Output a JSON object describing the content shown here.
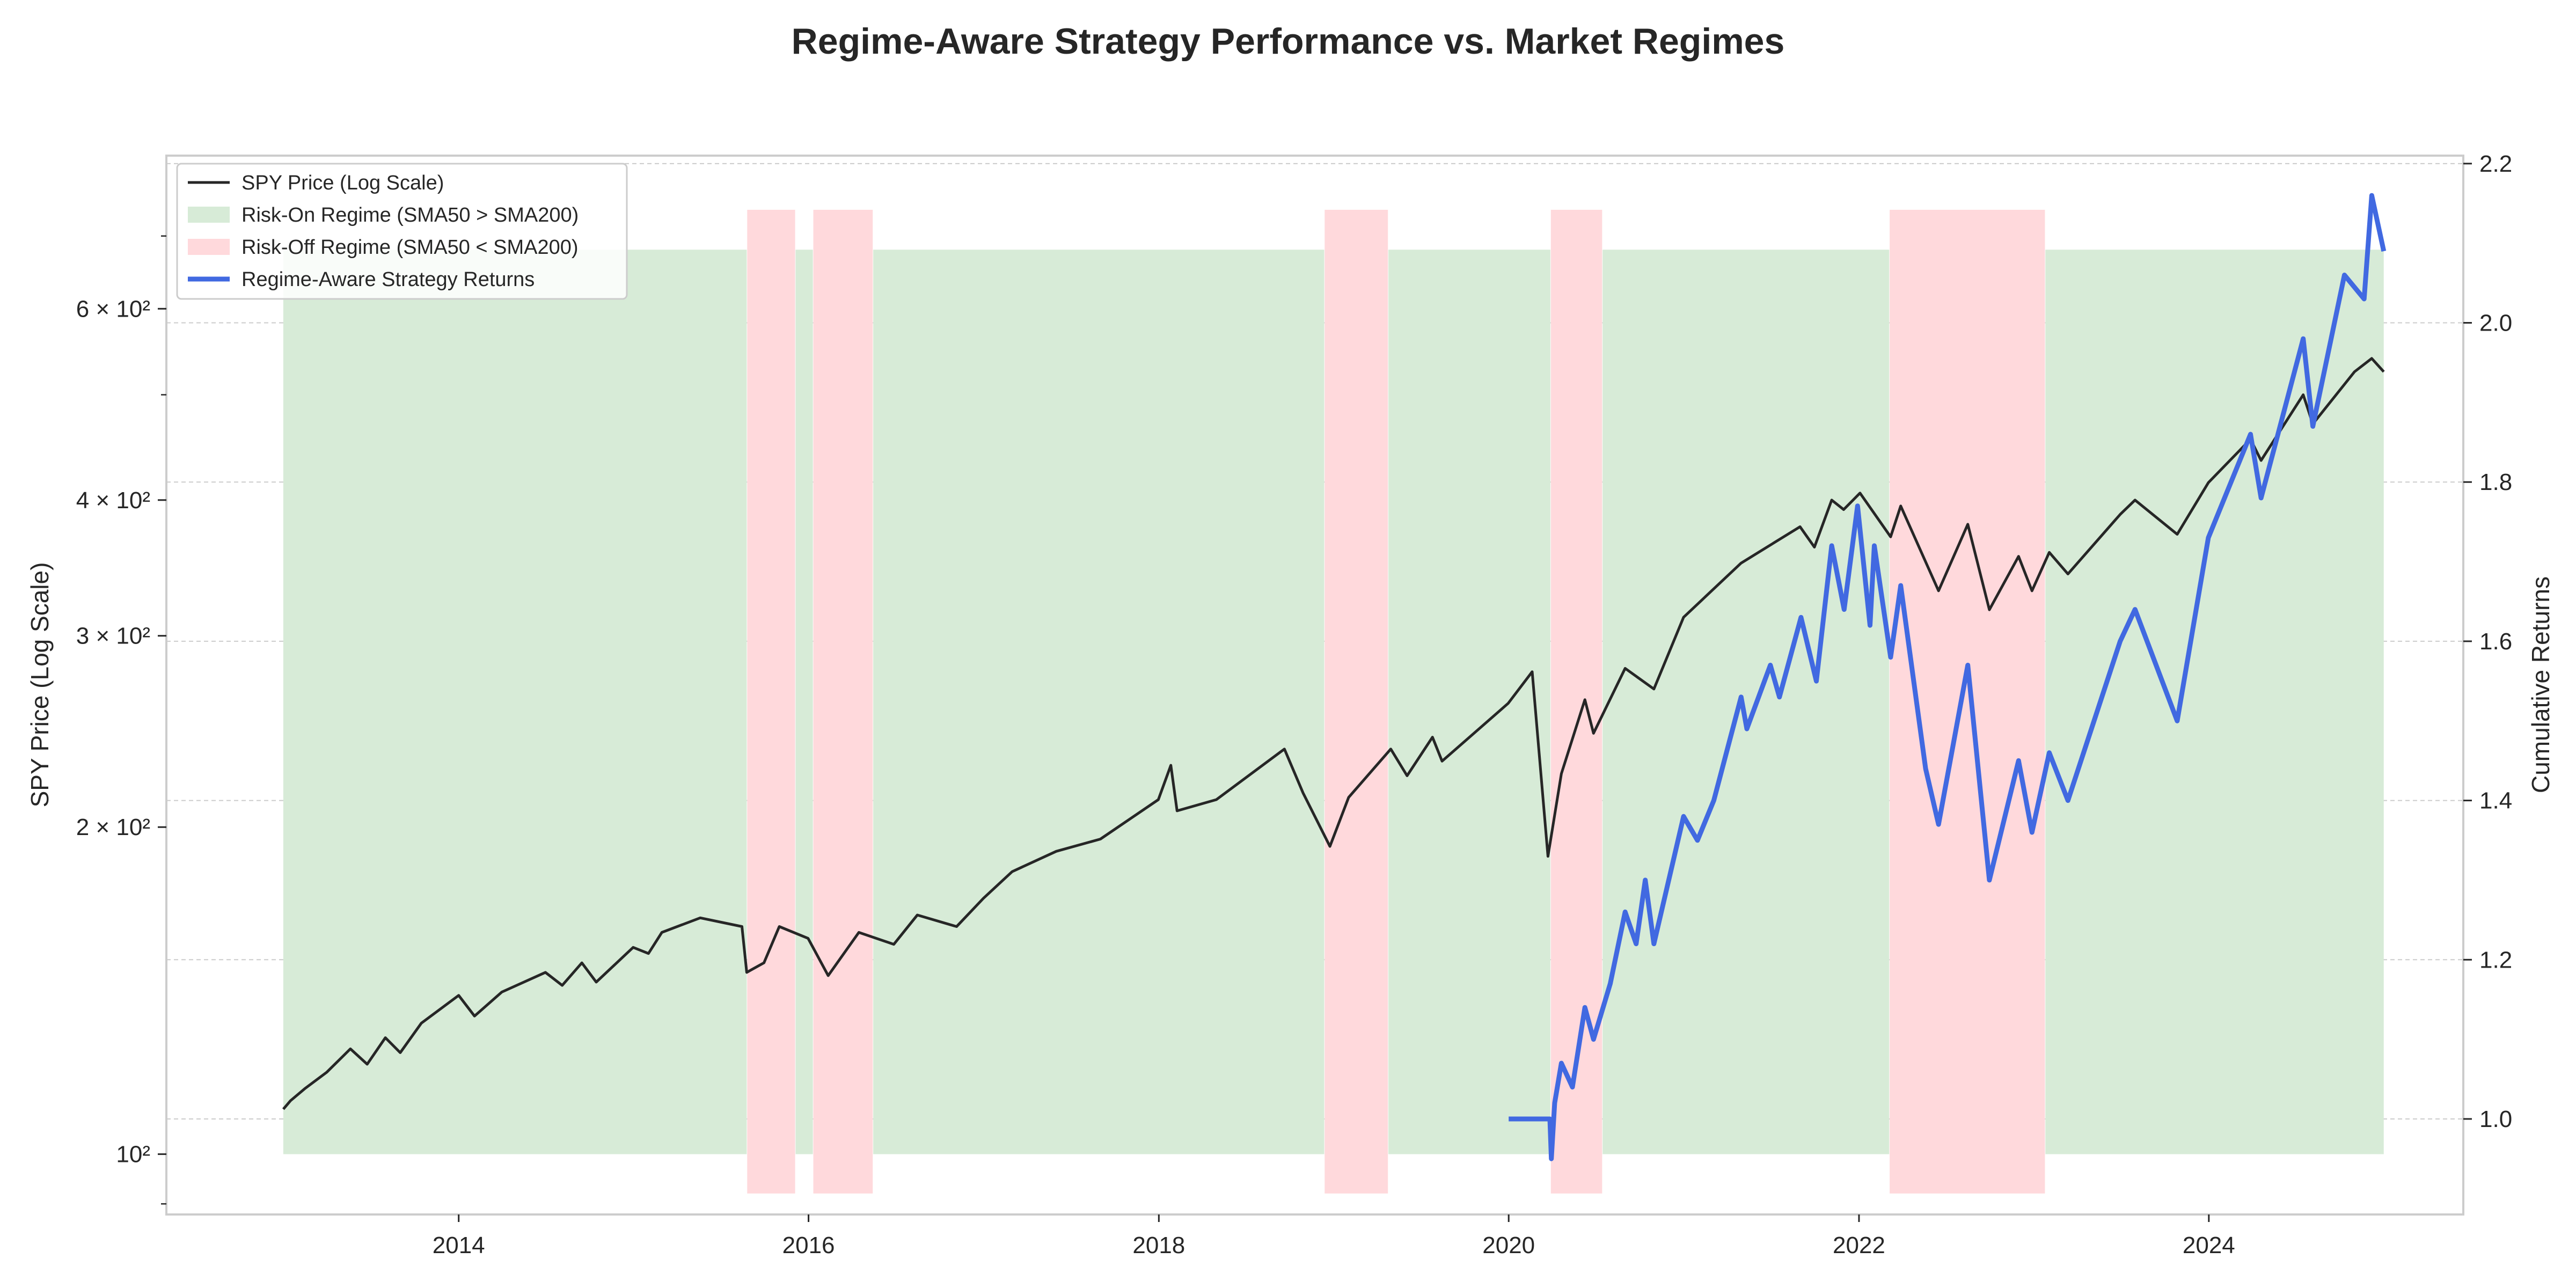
{
  "colors": {
    "price_line": "#262626",
    "strategy_line": "#4169e1",
    "risk_on_fill": "#d7ebd7",
    "risk_off_fill": "#ffd9dc",
    "grid": "#cccccc",
    "frame": "#cccccc"
  },
  "chart_data": {
    "type": "line",
    "title": "Regime-Aware Strategy Performance vs. Market Regimes",
    "xlabel": "",
    "ylabel": "SPY Price (Log Scale)",
    "y2label": "Cumulative Returns",
    "y_scale": "log",
    "xlim": [
      "2012-05-01",
      "2025-06-15"
    ],
    "ylim": [
      88,
      830
    ],
    "y2lim": [
      0.88,
      2.21
    ],
    "grid": true,
    "legend_position": "top-left",
    "x_ticks": [
      "2014",
      "2016",
      "2018",
      "2020",
      "2022",
      "2024"
    ],
    "y_ticks_major": [
      {
        "value": 100,
        "label": "10²"
      },
      {
        "value": 200,
        "label": "2 × 10²"
      },
      {
        "value": 300,
        "label": "3 × 10²"
      },
      {
        "value": 400,
        "label": "4 × 10²"
      },
      {
        "value": 600,
        "label": "6 × 10²"
      }
    ],
    "y_ticks_minor": [
      90,
      500,
      700
    ],
    "y2_ticks": [
      {
        "value": 1.0,
        "label": "1.0"
      },
      {
        "value": 1.2,
        "label": "1.2"
      },
      {
        "value": 1.4,
        "label": "1.4"
      },
      {
        "value": 1.6,
        "label": "1.6"
      },
      {
        "value": 1.8,
        "label": "1.8"
      },
      {
        "value": 2.0,
        "label": "2.0"
      },
      {
        "value": 2.2,
        "label": "2.2"
      }
    ],
    "legend": [
      {
        "label": "SPY Price (Log Scale)",
        "kind": "line",
        "series": "price"
      },
      {
        "label": "Risk-On Regime (SMA50 > SMA200)",
        "kind": "patch",
        "series": "risk_on"
      },
      {
        "label": "Risk-Off Regime (SMA50 < SMA200)",
        "kind": "patch",
        "series": "risk_off"
      },
      {
        "label": "Regime-Aware Strategy Returns",
        "kind": "line",
        "series": "strategy"
      }
    ],
    "regimes": {
      "risk_on_range": [
        100,
        680
      ],
      "risk_off_range": [
        92,
        740
      ],
      "risk_on": [
        [
          "2012-12-31",
          "2015-08-25"
        ],
        [
          "2015-12-05",
          "2016-01-10"
        ],
        [
          "2016-05-15",
          "2018-12-12"
        ],
        [
          "2019-04-25",
          "2020-03-28"
        ],
        [
          "2020-07-15",
          "2022-03-05"
        ],
        [
          "2023-01-25",
          "2024-12-31"
        ]
      ],
      "risk_off": [
        [
          "2015-08-26",
          "2015-12-04"
        ],
        [
          "2016-01-11",
          "2016-05-14"
        ],
        [
          "2018-12-13",
          "2019-04-24"
        ],
        [
          "2020-03-29",
          "2020-07-14"
        ],
        [
          "2022-03-06",
          "2023-01-24"
        ]
      ]
    },
    "series": [
      {
        "name": "SPY Price (Log Scale)",
        "axis": "left",
        "points": [
          [
            "2012-12-31",
            110
          ],
          [
            "2013-01-15",
            112
          ],
          [
            "2013-02-15",
            115
          ],
          [
            "2013-04-01",
            119
          ],
          [
            "2013-05-20",
            125
          ],
          [
            "2013-06-24",
            121
          ],
          [
            "2013-08-01",
            128
          ],
          [
            "2013-09-01",
            124
          ],
          [
            "2013-10-15",
            132
          ],
          [
            "2014-01-01",
            140
          ],
          [
            "2014-02-03",
            134
          ],
          [
            "2014-04-01",
            141
          ],
          [
            "2014-07-01",
            147
          ],
          [
            "2014-08-05",
            143
          ],
          [
            "2014-09-15",
            150
          ],
          [
            "2014-10-15",
            144
          ],
          [
            "2014-12-31",
            155
          ],
          [
            "2015-02-01",
            153
          ],
          [
            "2015-03-01",
            160
          ],
          [
            "2015-05-20",
            165
          ],
          [
            "2015-08-15",
            162
          ],
          [
            "2015-08-25",
            147
          ],
          [
            "2015-09-30",
            150
          ],
          [
            "2015-11-01",
            162
          ],
          [
            "2015-12-31",
            158
          ],
          [
            "2016-02-11",
            146
          ],
          [
            "2016-04-15",
            160
          ],
          [
            "2016-06-27",
            156
          ],
          [
            "2016-08-15",
            166
          ],
          [
            "2016-11-05",
            162
          ],
          [
            "2016-12-31",
            172
          ],
          [
            "2017-03-01",
            182
          ],
          [
            "2017-06-01",
            190
          ],
          [
            "2017-09-01",
            195
          ],
          [
            "2017-12-31",
            212
          ],
          [
            "2018-01-26",
            228
          ],
          [
            "2018-02-08",
            207
          ],
          [
            "2018-05-01",
            212
          ],
          [
            "2018-09-20",
            236
          ],
          [
            "2018-10-29",
            215
          ],
          [
            "2018-12-24",
            192
          ],
          [
            "2019-02-01",
            213
          ],
          [
            "2019-04-30",
            236
          ],
          [
            "2019-06-03",
            223
          ],
          [
            "2019-07-26",
            242
          ],
          [
            "2019-08-15",
            230
          ],
          [
            "2019-12-31",
            260
          ],
          [
            "2020-02-19",
            278
          ],
          [
            "2020-03-23",
            188
          ],
          [
            "2020-04-20",
            224
          ],
          [
            "2020-06-08",
            262
          ],
          [
            "2020-06-26",
            244
          ],
          [
            "2020-08-31",
            280
          ],
          [
            "2020-10-30",
            268
          ],
          [
            "2020-12-31",
            312
          ],
          [
            "2021-04-30",
            350
          ],
          [
            "2021-08-31",
            378
          ],
          [
            "2021-09-30",
            362
          ],
          [
            "2021-11-05",
            400
          ],
          [
            "2021-11-30",
            392
          ],
          [
            "2022-01-03",
            406
          ],
          [
            "2022-03-08",
            370
          ],
          [
            "2022-03-29",
            395
          ],
          [
            "2022-06-16",
            330
          ],
          [
            "2022-08-16",
            380
          ],
          [
            "2022-09-30",
            317
          ],
          [
            "2022-11-30",
            355
          ],
          [
            "2022-12-28",
            330
          ],
          [
            "2023-02-02",
            358
          ],
          [
            "2023-03-13",
            342
          ],
          [
            "2023-06-30",
            388
          ],
          [
            "2023-07-31",
            400
          ],
          [
            "2023-10-27",
            372
          ],
          [
            "2023-12-31",
            415
          ],
          [
            "2024-03-28",
            455
          ],
          [
            "2024-04-19",
            435
          ],
          [
            "2024-07-16",
            500
          ],
          [
            "2024-08-05",
            470
          ],
          [
            "2024-10-31",
            525
          ],
          [
            "2024-12-06",
            540
          ],
          [
            "2024-12-31",
            525
          ]
        ]
      },
      {
        "name": "Regime-Aware Strategy Returns",
        "axis": "right",
        "points": [
          [
            "2020-01-01",
            1.0
          ],
          [
            "2020-03-27",
            1.0
          ],
          [
            "2020-03-30",
            0.95
          ],
          [
            "2020-04-06",
            1.02
          ],
          [
            "2020-04-20",
            1.07
          ],
          [
            "2020-05-13",
            1.04
          ],
          [
            "2020-06-08",
            1.14
          ],
          [
            "2020-06-26",
            1.1
          ],
          [
            "2020-07-31",
            1.17
          ],
          [
            "2020-08-31",
            1.26
          ],
          [
            "2020-09-23",
            1.22
          ],
          [
            "2020-10-12",
            1.3
          ],
          [
            "2020-10-30",
            1.22
          ],
          [
            "2020-12-31",
            1.38
          ],
          [
            "2021-01-29",
            1.35
          ],
          [
            "2021-03-04",
            1.4
          ],
          [
            "2021-04-30",
            1.53
          ],
          [
            "2021-05-12",
            1.49
          ],
          [
            "2021-06-30",
            1.57
          ],
          [
            "2021-07-19",
            1.53
          ],
          [
            "2021-09-02",
            1.63
          ],
          [
            "2021-10-04",
            1.55
          ],
          [
            "2021-11-05",
            1.72
          ],
          [
            "2021-12-01",
            1.64
          ],
          [
            "2021-12-29",
            1.77
          ],
          [
            "2022-01-24",
            1.62
          ],
          [
            "2022-02-02",
            1.72
          ],
          [
            "2022-03-08",
            1.58
          ],
          [
            "2022-03-29",
            1.67
          ],
          [
            "2022-05-20",
            1.44
          ],
          [
            "2022-06-16",
            1.37
          ],
          [
            "2022-08-16",
            1.57
          ],
          [
            "2022-09-30",
            1.3
          ],
          [
            "2022-11-30",
            1.45
          ],
          [
            "2022-12-28",
            1.36
          ],
          [
            "2023-02-02",
            1.46
          ],
          [
            "2023-03-13",
            1.4
          ],
          [
            "2023-06-30",
            1.6
          ],
          [
            "2023-07-31",
            1.64
          ],
          [
            "2023-10-27",
            1.5
          ],
          [
            "2023-12-31",
            1.73
          ],
          [
            "2024-03-28",
            1.86
          ],
          [
            "2024-04-19",
            1.78
          ],
          [
            "2024-07-16",
            1.98
          ],
          [
            "2024-08-05",
            1.87
          ],
          [
            "2024-10-10",
            2.06
          ],
          [
            "2024-11-20",
            2.03
          ],
          [
            "2024-12-06",
            2.16
          ],
          [
            "2024-12-31",
            2.09
          ]
        ]
      }
    ]
  }
}
